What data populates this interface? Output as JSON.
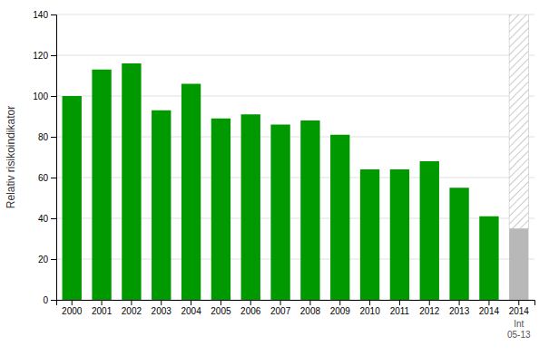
{
  "chart_data": {
    "type": "bar",
    "categories": [
      "2000",
      "2001",
      "2002",
      "2003",
      "2004",
      "2005",
      "2006",
      "2007",
      "2008",
      "2009",
      "2010",
      "2011",
      "2012",
      "2013",
      "2014",
      "2014"
    ],
    "stacked": true,
    "series": [
      {
        "color": "#009900",
        "values": [
          100,
          113,
          116,
          93,
          106,
          89,
          91,
          86,
          88,
          81,
          64,
          64,
          68,
          55,
          41,
          null
        ]
      },
      {
        "color": "#b8b8b8",
        "values": [
          null,
          null,
          null,
          null,
          null,
          null,
          null,
          null,
          null,
          null,
          null,
          null,
          null,
          null,
          null,
          35
        ]
      },
      {
        "color": "#ffffff",
        "values": [
          null,
          null,
          null,
          null,
          null,
          null,
          null,
          null,
          null,
          null,
          null,
          null,
          null,
          null,
          null,
          105
        ]
      }
    ],
    "annotation": "Int\n05-13",
    "ylabel": "Relativ risikoindikator",
    "ylim": [
      0,
      140
    ],
    "yticks": [
      0,
      20,
      40,
      60,
      80,
      100,
      120,
      140
    ],
    "grid": true
  }
}
